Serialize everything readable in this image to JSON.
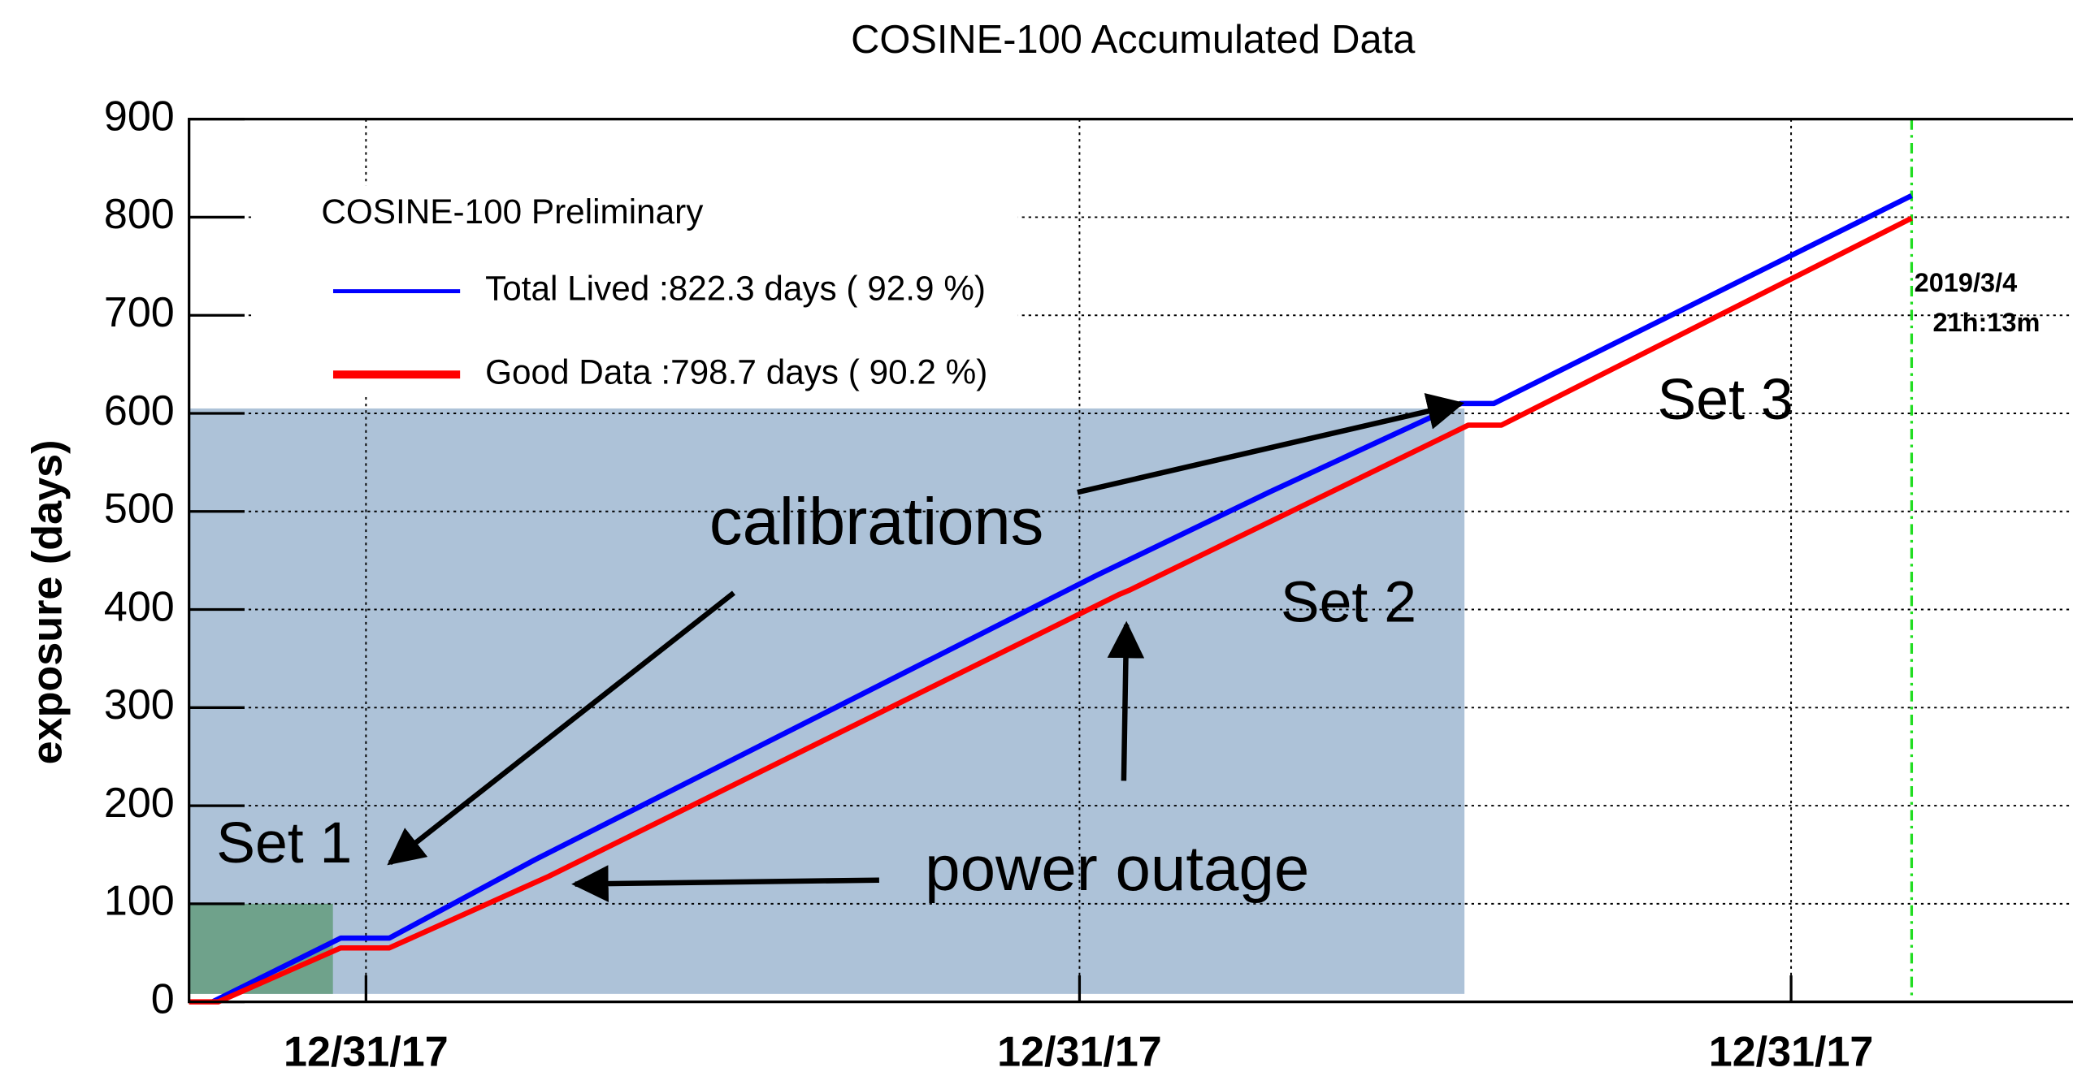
{
  "chart_data": {
    "type": "line",
    "title": "COSINE-100 Accumulated Data",
    "y_label": "exposure (days)",
    "legend_title": "COSINE-100 Preliminary",
    "xlim": [
      0,
      969
    ],
    "xticks": [
      {
        "value": 91,
        "label": "12/31/17"
      },
      {
        "value": 458,
        "label": "12/31/17"
      },
      {
        "value": 824,
        "label": "12/31/17"
      }
    ],
    "ylim": [
      0,
      900
    ],
    "yticks": [
      0,
      100,
      200,
      300,
      400,
      500,
      600,
      700,
      800,
      900
    ],
    "grid": true,
    "series": [
      {
        "name": "Total Lived :822.3 days ( 92.9 %)",
        "color": "#0000ff",
        "x": [
          12,
          78,
          103,
          178,
          467,
          556,
          654,
          671,
          886
        ],
        "values": [
          0,
          65,
          65,
          145,
          435,
          520,
          610,
          610,
          822
        ]
      },
      {
        "name": "Good Data :798.7 days ( 90.2 %)",
        "color": "#ff0000",
        "x": [
          0,
          15,
          78,
          103,
          185,
          478,
          484,
          658,
          675,
          886
        ],
        "values": [
          0,
          0,
          55,
          55,
          128,
          415,
          420,
          588,
          588,
          799
        ]
      }
    ],
    "regions": [
      {
        "label": "Set 2",
        "x": [
          0,
          656
        ],
        "y": [
          0,
          605
        ],
        "color": "#a9bfd6"
      },
      {
        "label": "Set 1",
        "x": [
          0,
          74
        ],
        "y": [
          0,
          100
        ],
        "color": "#5f9a78"
      }
    ],
    "marker": {
      "x": 886,
      "color": "#22dd22",
      "lines": [
        "2019/3/4",
        "21h:13m"
      ]
    },
    "annotations": [
      "calibrations",
      "power outage",
      "Set 3"
    ]
  }
}
